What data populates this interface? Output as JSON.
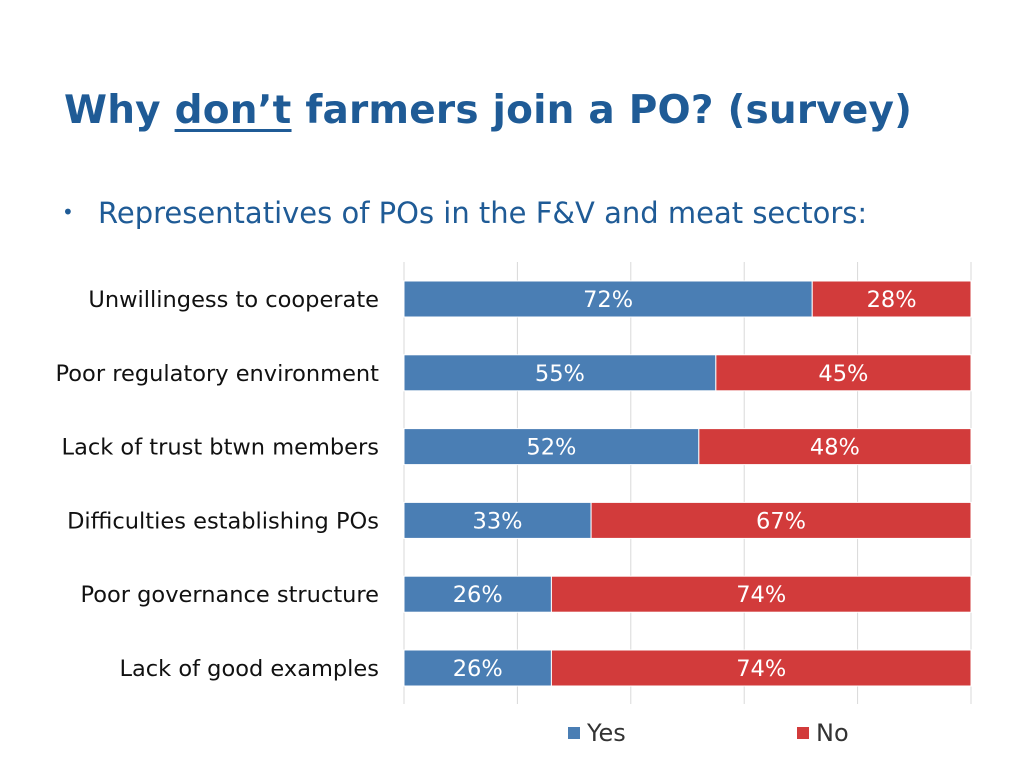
{
  "title": {
    "before": "Why",
    "emphasis": "don’t",
    "after": "farmers join a PO? (survey)"
  },
  "bullet": {
    "text": "Representatives of POs in the F&V and meat sectors:"
  },
  "colors": {
    "title": "#1f5b96",
    "yes": "#4a7eb4",
    "no": "#d23b3b",
    "grid": "#d9d9d9",
    "bar_text": "#ffffff",
    "label_text": "#111111"
  },
  "chart_data": {
    "type": "bar",
    "orientation": "horizontal",
    "stacked": true,
    "percent_stacked": true,
    "categories": [
      "Unwillingess to cooperate",
      "Poor regulatory environment",
      "Lack of trust btwn members",
      "Difficulties establishing POs",
      "Poor governance structure",
      "Lack of good examples"
    ],
    "series": [
      {
        "name": "Yes",
        "values": [
          72,
          55,
          52,
          33,
          26,
          26
        ],
        "labels": [
          "72%",
          "55%",
          "52%",
          "33%",
          "26%",
          "26%"
        ]
      },
      {
        "name": "No",
        "values": [
          28,
          45,
          48,
          67,
          74,
          74
        ],
        "labels": [
          "28%",
          "45%",
          "48%",
          "67%",
          "74%",
          "74%"
        ]
      }
    ],
    "xlim": [
      0,
      100
    ],
    "grid": true,
    "legend": "bottom",
    "title": "",
    "xlabel": "",
    "ylabel": ""
  }
}
